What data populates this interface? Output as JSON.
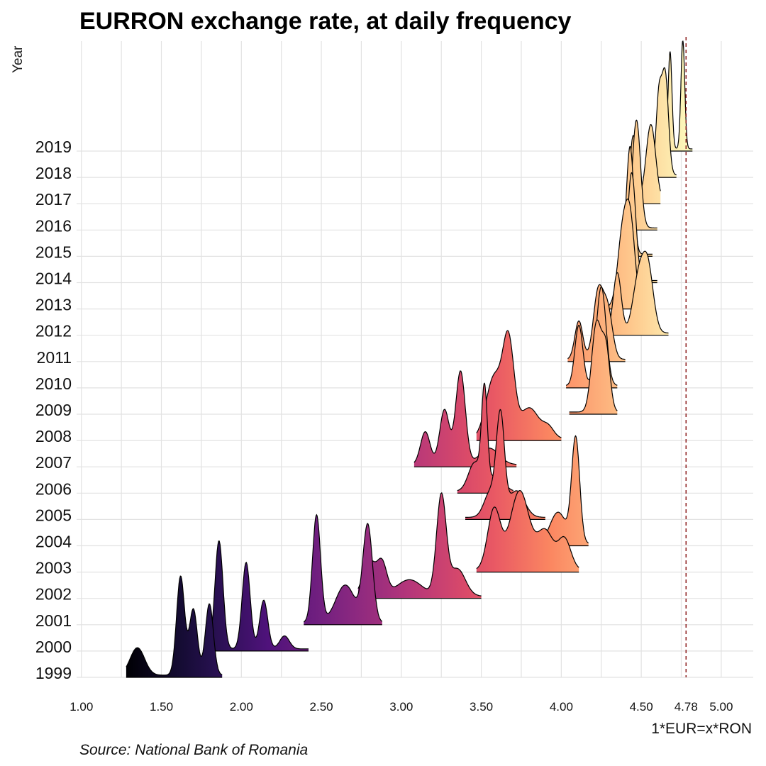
{
  "chart_data": {
    "type": "ridgeline",
    "title": "EURRON exchange rate, at daily frequency",
    "ylabel": "Year",
    "xlabel": "1*EUR=x*RON",
    "caption": "Source: National Bank of Romania",
    "xlim": [
      0.97,
      5.2
    ],
    "x_ticks": [
      "1.00",
      "1.50",
      "2.00",
      "2.50",
      "3.00",
      "3.50",
      "4.00",
      "4.50",
      "4.78",
      "5.00"
    ],
    "x_tick_values": [
      1.0,
      1.5,
      2.0,
      2.5,
      3.0,
      3.5,
      4.0,
      4.5,
      4.78,
      5.0
    ],
    "reference_line": {
      "x": 4.78,
      "style": "dashed",
      "color": "#8b1a1a"
    },
    "fill_palette": "magma",
    "grid": true,
    "series": [
      {
        "name": "1999",
        "range": [
          1.28,
          1.88
        ],
        "peaks": [
          [
            1.35,
            0.045,
            0.25
          ],
          [
            1.62,
            0.025,
            0.9
          ],
          [
            1.7,
            0.025,
            0.6
          ],
          [
            1.8,
            0.025,
            0.65
          ]
        ]
      },
      {
        "name": "2000",
        "range": [
          1.78,
          2.42
        ],
        "peaks": [
          [
            1.86,
            0.025,
            1.0
          ],
          [
            2.03,
            0.025,
            0.8
          ],
          [
            2.14,
            0.025,
            0.45
          ],
          [
            2.27,
            0.03,
            0.12
          ]
        ]
      },
      {
        "name": "2001",
        "range": [
          2.39,
          2.88
        ],
        "peaks": [
          [
            2.47,
            0.025,
            1.0
          ],
          [
            2.65,
            0.06,
            0.35
          ],
          [
            2.79,
            0.03,
            0.9
          ]
        ]
      },
      {
        "name": "2002",
        "range": [
          2.73,
          3.5
        ],
        "peaks": [
          [
            2.8,
            0.04,
            0.32
          ],
          [
            2.88,
            0.03,
            0.28
          ],
          [
            3.05,
            0.08,
            0.15
          ],
          [
            3.25,
            0.03,
            0.9
          ],
          [
            3.35,
            0.05,
            0.25
          ]
        ]
      },
      {
        "name": "2003",
        "range": [
          3.47,
          4.11
        ],
        "peaks": [
          [
            3.58,
            0.04,
            0.55
          ],
          [
            3.74,
            0.06,
            0.72
          ],
          [
            3.9,
            0.05,
            0.35
          ],
          [
            4.02,
            0.04,
            0.28
          ]
        ]
      },
      {
        "name": "2004",
        "range": [
          3.78,
          4.17
        ],
        "peaks": [
          [
            3.98,
            0.05,
            0.3
          ],
          [
            4.09,
            0.025,
            1.0
          ]
        ]
      },
      {
        "name": "2005",
        "range": [
          3.4,
          3.9
        ],
        "peaks": [
          [
            3.56,
            0.04,
            0.25
          ],
          [
            3.62,
            0.025,
            0.9
          ],
          [
            3.72,
            0.05,
            0.25
          ]
        ]
      },
      {
        "name": "2006",
        "range": [
          3.35,
          3.7
        ],
        "peaks": [
          [
            3.46,
            0.04,
            0.3
          ],
          [
            3.52,
            0.018,
            1.0
          ],
          [
            3.6,
            0.04,
            0.18
          ]
        ]
      },
      {
        "name": "2007",
        "range": [
          3.08,
          3.72
        ],
        "peaks": [
          [
            3.15,
            0.03,
            0.3
          ],
          [
            3.27,
            0.03,
            0.5
          ],
          [
            3.37,
            0.03,
            0.85
          ],
          [
            3.55,
            0.06,
            0.15
          ]
        ]
      },
      {
        "name": "2008",
        "range": [
          3.47,
          4.0
        ],
        "peaks": [
          [
            3.58,
            0.05,
            0.6
          ],
          [
            3.67,
            0.035,
            0.9
          ],
          [
            3.8,
            0.06,
            0.3
          ],
          [
            3.92,
            0.035,
            0.1
          ]
        ]
      },
      {
        "name": "2009",
        "range": [
          4.05,
          4.35
        ],
        "peaks": [
          [
            4.22,
            0.03,
            0.8
          ],
          [
            4.28,
            0.025,
            0.55
          ]
        ]
      },
      {
        "name": "2010",
        "range": [
          4.03,
          4.35
        ],
        "peaks": [
          [
            4.11,
            0.025,
            0.55
          ],
          [
            4.25,
            0.03,
            0.9
          ]
        ]
      },
      {
        "name": "2011",
        "range": [
          4.04,
          4.4
        ],
        "peaks": [
          [
            4.11,
            0.025,
            0.35
          ],
          [
            4.23,
            0.03,
            0.6
          ],
          [
            4.29,
            0.03,
            0.45
          ]
        ]
      },
      {
        "name": "2012",
        "range": [
          4.3,
          4.67
        ],
        "peaks": [
          [
            4.35,
            0.025,
            0.55
          ],
          [
            4.48,
            0.035,
            0.45
          ],
          [
            4.54,
            0.035,
            0.6
          ]
        ]
      },
      {
        "name": "2013",
        "range": [
          4.28,
          4.55
        ],
        "peaks": [
          [
            4.38,
            0.03,
            0.6
          ],
          [
            4.43,
            0.03,
            0.8
          ]
        ]
      },
      {
        "name": "2014",
        "range": [
          4.35,
          4.6
        ],
        "peaks": [
          [
            4.44,
            0.025,
            1.0
          ]
        ]
      },
      {
        "name": "2015",
        "range": [
          4.36,
          4.57
        ],
        "peaks": [
          [
            4.43,
            0.022,
            1.0
          ]
        ]
      },
      {
        "name": "2016",
        "range": [
          4.41,
          4.6
        ],
        "peaks": [
          [
            4.47,
            0.025,
            1.0
          ]
        ]
      },
      {
        "name": "2017",
        "range": [
          4.42,
          4.62
        ],
        "peaks": [
          [
            4.45,
            0.02,
            0.6
          ],
          [
            4.56,
            0.03,
            0.7
          ]
        ]
      },
      {
        "name": "2018",
        "range": [
          4.55,
          4.72
        ],
        "peaks": [
          [
            4.61,
            0.018,
            0.7
          ],
          [
            4.65,
            0.02,
            0.9
          ]
        ]
      },
      {
        "name": "2019",
        "range": [
          4.65,
          4.82
        ],
        "peaks": [
          [
            4.68,
            0.012,
            0.9
          ],
          [
            4.76,
            0.012,
            1.0
          ]
        ]
      }
    ]
  }
}
